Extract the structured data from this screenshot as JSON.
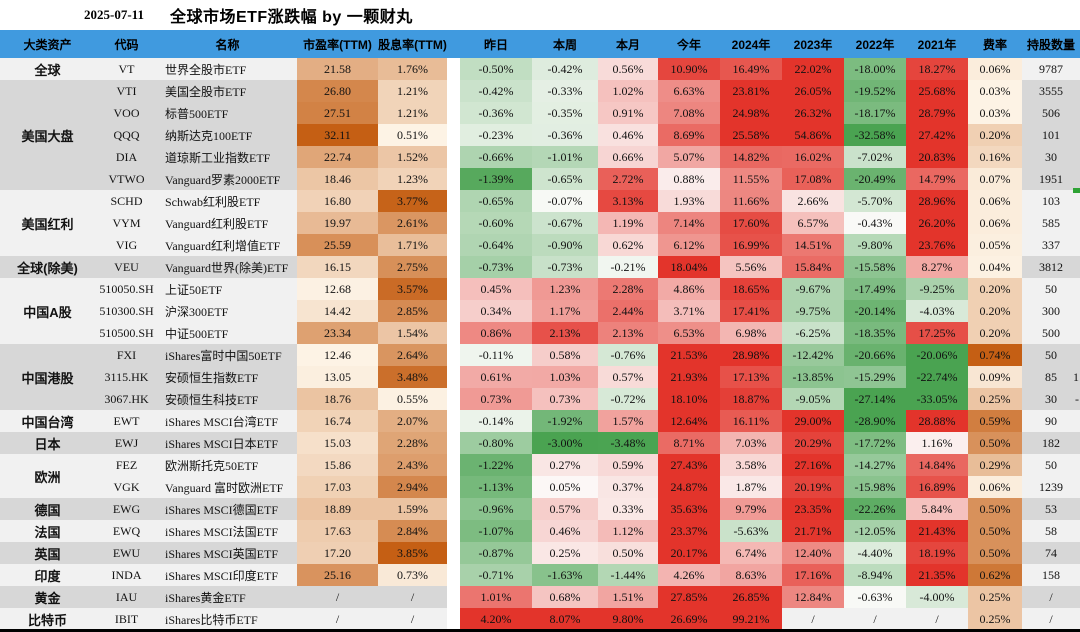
{
  "title_bar": {
    "date": "2025-07-11",
    "title": "全球市场ETF涨跌幅 by 一颗财丸"
  },
  "columns": [
    "大类资产",
    "代码",
    "名称",
    "市盈率(TTM)",
    "股息率(TTM)",
    "昨日",
    "本周",
    "本月",
    "今年",
    "2024年",
    "2023年",
    "2022年",
    "2021年",
    "费率",
    "持股数量"
  ],
  "groups": [
    {
      "asset": "全球",
      "rows": [
        {
          "code": "VT",
          "name": "世界全股市ETF",
          "pe": "21.58",
          "div": "1.76%",
          "returns": [
            "-0.50%",
            "-0.42%",
            "0.56%",
            "10.90%",
            "16.49%",
            "22.02%",
            "-18.00%",
            "18.27%"
          ],
          "fee": "0.06%",
          "holdings": "9787"
        }
      ]
    },
    {
      "asset": "美国大盘",
      "rows": [
        {
          "code": "VTI",
          "name": "美国全股市ETF",
          "pe": "26.80",
          "div": "1.21%",
          "returns": [
            "-0.42%",
            "-0.33%",
            "1.02%",
            "6.63%",
            "23.81%",
            "26.05%",
            "-19.52%",
            "25.68%"
          ],
          "fee": "0.03%",
          "holdings": "3555"
        },
        {
          "code": "VOO",
          "name": "标普500ETF",
          "pe": "27.51",
          "div": "1.21%",
          "returns": [
            "-0.36%",
            "-0.35%",
            "0.91%",
            "7.08%",
            "24.98%",
            "26.32%",
            "-18.17%",
            "28.79%"
          ],
          "fee": "0.03%",
          "holdings": "506"
        },
        {
          "code": "QQQ",
          "name": "纳斯达克100ETF",
          "pe": "32.11",
          "div": "0.51%",
          "returns": [
            "-0.23%",
            "-0.36%",
            "0.46%",
            "8.69%",
            "25.58%",
            "54.86%",
            "-32.58%",
            "27.42%"
          ],
          "fee": "0.20%",
          "holdings": "101"
        },
        {
          "code": "DIA",
          "name": "道琼斯工业指数ETF",
          "pe": "22.74",
          "div": "1.52%",
          "returns": [
            "-0.66%",
            "-1.01%",
            "0.66%",
            "5.07%",
            "14.82%",
            "16.02%",
            "-7.02%",
            "20.83%"
          ],
          "fee": "0.16%",
          "holdings": "30"
        },
        {
          "code": "VTWO",
          "name": "Vanguard罗素2000ETF",
          "pe": "18.46",
          "div": "1.23%",
          "returns": [
            "-1.39%",
            "-0.65%",
            "2.72%",
            "0.88%",
            "11.55%",
            "17.08%",
            "-20.49%",
            "14.79%"
          ],
          "fee": "0.07%",
          "holdings": "1951"
        }
      ]
    },
    {
      "asset": "美国红利",
      "rows": [
        {
          "code": "SCHD",
          "name": "Schwab红利股ETF",
          "pe": "16.80",
          "div": "3.77%",
          "returns": [
            "-0.65%",
            "-0.07%",
            "3.13%",
            "1.93%",
            "11.66%",
            "2.66%",
            "-5.70%",
            "28.96%"
          ],
          "fee": "0.06%",
          "holdings": "103"
        },
        {
          "code": "VYM",
          "name": "Vanguard红利股ETF",
          "pe": "19.97",
          "div": "2.61%",
          "returns": [
            "-0.60%",
            "-0.67%",
            "1.19%",
            "7.14%",
            "17.60%",
            "6.57%",
            "-0.43%",
            "26.20%"
          ],
          "fee": "0.06%",
          "holdings": "585"
        },
        {
          "code": "VIG",
          "name": "Vanguard红利增值ETF",
          "pe": "25.59",
          "div": "1.71%",
          "returns": [
            "-0.64%",
            "-0.90%",
            "0.62%",
            "6.12%",
            "16.99%",
            "14.51%",
            "-9.80%",
            "23.76%"
          ],
          "fee": "0.05%",
          "holdings": "337"
        }
      ]
    },
    {
      "asset": "全球(除美)",
      "rows": [
        {
          "code": "VEU",
          "name": "Vanguard世界(除美)ETF",
          "pe": "16.15",
          "div": "2.75%",
          "returns": [
            "-0.73%",
            "-0.73%",
            "-0.21%",
            "18.04%",
            "5.56%",
            "15.84%",
            "-15.58%",
            "8.27%"
          ],
          "fee": "0.04%",
          "holdings": "3812"
        }
      ]
    },
    {
      "asset": "中国A股",
      "rows": [
        {
          "code": "510050.SH",
          "name": "上证50ETF",
          "pe": "12.68",
          "div": "3.57%",
          "returns": [
            "0.45%",
            "1.23%",
            "2.28%",
            "4.86%",
            "18.65%",
            "-9.67%",
            "-17.49%",
            "-9.25%"
          ],
          "fee": "0.20%",
          "holdings": "50"
        },
        {
          "code": "510300.SH",
          "name": "沪深300ETF",
          "pe": "14.42",
          "div": "2.85%",
          "returns": [
            "0.34%",
            "1.17%",
            "2.44%",
            "3.71%",
            "17.41%",
            "-9.75%",
            "-20.14%",
            "-4.03%"
          ],
          "fee": "0.20%",
          "holdings": "300"
        },
        {
          "code": "510500.SH",
          "name": "中证500ETF",
          "pe": "23.34",
          "div": "1.54%",
          "returns": [
            "0.86%",
            "2.13%",
            "2.13%",
            "6.53%",
            "6.98%",
            "-6.25%",
            "-18.35%",
            "17.25%"
          ],
          "fee": "0.20%",
          "holdings": "500"
        }
      ]
    },
    {
      "asset": "中国港股",
      "rows": [
        {
          "code": "FXI",
          "name": "iShares富时中国50ETF",
          "pe": "12.46",
          "div": "2.64%",
          "returns": [
            "-0.11%",
            "0.58%",
            "-0.76%",
            "21.53%",
            "28.98%",
            "-12.42%",
            "-20.66%",
            "-20.06%"
          ],
          "fee": "0.74%",
          "holdings": "50"
        },
        {
          "code": "3115.HK",
          "name": "安硕恒生指数ETF",
          "pe": "13.05",
          "div": "3.48%",
          "returns": [
            "0.61%",
            "1.03%",
            "0.57%",
            "21.93%",
            "17.13%",
            "-13.85%",
            "-15.29%",
            "-22.74%"
          ],
          "fee": "0.09%",
          "holdings": "85"
        },
        {
          "code": "3067.HK",
          "name": "安硕恒生科技ETF",
          "pe": "18.76",
          "div": "0.55%",
          "returns": [
            "0.73%",
            "0.73%",
            "-0.72%",
            "18.10%",
            "18.87%",
            "-9.05%",
            "-27.14%",
            "-33.05%"
          ],
          "fee": "0.25%",
          "holdings": "30"
        }
      ]
    },
    {
      "asset": "中国台湾",
      "rows": [
        {
          "code": "EWT",
          "name": "iShares MSCI台湾ETF",
          "pe": "16.74",
          "div": "2.07%",
          "returns": [
            "-0.14%",
            "-1.92%",
            "1.57%",
            "12.64%",
            "16.11%",
            "29.00%",
            "-28.90%",
            "28.88%"
          ],
          "fee": "0.59%",
          "holdings": "90"
        }
      ]
    },
    {
      "asset": "日本",
      "rows": [
        {
          "code": "EWJ",
          "name": "iShares MSCI日本ETF",
          "pe": "15.03",
          "div": "2.28%",
          "returns": [
            "-0.80%",
            "-3.00%",
            "-3.48%",
            "8.71%",
            "7.03%",
            "20.29%",
            "-17.72%",
            "1.16%"
          ],
          "fee": "0.50%",
          "holdings": "182"
        }
      ]
    },
    {
      "asset": "欧洲",
      "rows": [
        {
          "code": "FEZ",
          "name": "欧洲斯托克50ETF",
          "pe": "15.86",
          "div": "2.43%",
          "returns": [
            "-1.22%",
            "0.27%",
            "0.59%",
            "27.43%",
            "3.58%",
            "27.16%",
            "-14.27%",
            "14.84%"
          ],
          "fee": "0.29%",
          "holdings": "50"
        },
        {
          "code": "VGK",
          "name": "Vanguard 富时欧洲ETF",
          "pe": "17.03",
          "div": "2.94%",
          "returns": [
            "-1.13%",
            "0.05%",
            "0.37%",
            "24.87%",
            "1.87%",
            "20.19%",
            "-15.98%",
            "16.89%"
          ],
          "fee": "0.06%",
          "holdings": "1239"
        }
      ]
    },
    {
      "asset": "德国",
      "rows": [
        {
          "code": "EWG",
          "name": "iShares MSCI德国ETF",
          "pe": "18.89",
          "div": "1.59%",
          "returns": [
            "-0.96%",
            "0.57%",
            "0.33%",
            "35.63%",
            "9.79%",
            "23.35%",
            "-22.26%",
            "5.84%"
          ],
          "fee": "0.50%",
          "holdings": "53"
        }
      ]
    },
    {
      "asset": "法国",
      "rows": [
        {
          "code": "EWQ",
          "name": "iShares MSCI法国ETF",
          "pe": "17.63",
          "div": "2.84%",
          "returns": [
            "-1.07%",
            "0.46%",
            "1.12%",
            "23.37%",
            "-5.63%",
            "21.71%",
            "-12.05%",
            "21.43%"
          ],
          "fee": "0.50%",
          "holdings": "58"
        }
      ]
    },
    {
      "asset": "英国",
      "rows": [
        {
          "code": "EWU",
          "name": "iShares MSCI英国ETF",
          "pe": "17.20",
          "div": "3.85%",
          "returns": [
            "-0.87%",
            "0.25%",
            "0.50%",
            "20.17%",
            "6.74%",
            "12.40%",
            "-4.40%",
            "18.19%"
          ],
          "fee": "0.50%",
          "holdings": "74"
        }
      ]
    },
    {
      "asset": "印度",
      "rows": [
        {
          "code": "INDA",
          "name": "iShares MSCI印度ETF",
          "pe": "25.16",
          "div": "0.73%",
          "returns": [
            "-0.71%",
            "-1.63%",
            "-1.44%",
            "4.26%",
            "8.63%",
            "17.16%",
            "-8.94%",
            "21.35%"
          ],
          "fee": "0.62%",
          "holdings": "158"
        }
      ]
    },
    {
      "asset": "黄金",
      "rows": [
        {
          "code": "IAU",
          "name": "iShares黄金ETF",
          "pe": "/",
          "div": "/",
          "returns": [
            "1.01%",
            "0.68%",
            "1.51%",
            "27.85%",
            "26.85%",
            "12.84%",
            "-0.63%",
            "-4.00%"
          ],
          "fee": "0.25%",
          "holdings": "/"
        }
      ]
    },
    {
      "asset": "比特币",
      "rows": [
        {
          "code": "IBIT",
          "name": "iShares比特币ETF",
          "pe": "/",
          "div": "/",
          "returns": [
            "4.20%",
            "8.07%",
            "9.80%",
            "26.69%",
            "99.21%",
            "/",
            "/",
            "/"
          ],
          "fee": "0.25%",
          "holdings": "/"
        }
      ]
    }
  ],
  "edge_fragments": {
    "hk_index_row": "1",
    "hk_tech_row": "-"
  },
  "colors": {
    "header_blue": "#409ADF",
    "stripe_light": "#f1f1f1",
    "stripe_dark": "#d7d7d7",
    "positive_red": "#e3342b",
    "negative_green": "#4aa351",
    "neutral_white": "#fcfbfa",
    "orange_dark": "#c55f14",
    "orange_light": "#fdf3e5",
    "spacer_white": "#ffffff",
    "edge_tick_green": "#2ea335",
    "bottom_bar_black": "#000000"
  }
}
